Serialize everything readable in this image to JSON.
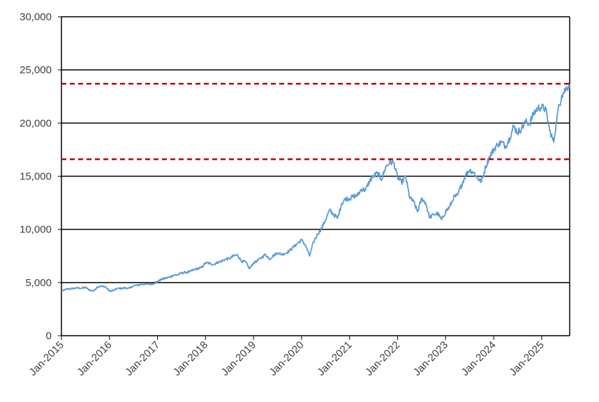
{
  "chart_data": {
    "type": "line",
    "title": "",
    "xlabel": "",
    "ylabel": "",
    "ylim": [
      0,
      30000
    ],
    "yticks": [
      0,
      5000,
      10000,
      15000,
      20000,
      25000,
      30000
    ],
    "ytick_labels": [
      "0",
      "5,000",
      "10,000",
      "15,000",
      "20,000",
      "25,000",
      "30,000"
    ],
    "xlim": [
      "2015-01",
      "2025-08"
    ],
    "xtick_labels": [
      "Jan-2015",
      "Jan-2016",
      "Jan-2017",
      "Jan-2018",
      "Jan-2019",
      "Jan-2020",
      "Jan-2021",
      "Jan-2022",
      "Jan-2023",
      "Jan-2024",
      "Jan-2025"
    ],
    "grid": "horizontal",
    "legend": "none",
    "series": [
      {
        "color": "#5b9bd5",
        "x": [
          "2015-01",
          "2015-02",
          "2015-03",
          "2015-04",
          "2015-05",
          "2015-06",
          "2015-07",
          "2015-08",
          "2015-09",
          "2015-10",
          "2015-11",
          "2015-12",
          "2016-01",
          "2016-02",
          "2016-03",
          "2016-04",
          "2016-05",
          "2016-06",
          "2016-07",
          "2016-08",
          "2016-09",
          "2016-10",
          "2016-11",
          "2016-12",
          "2017-01",
          "2017-02",
          "2017-03",
          "2017-04",
          "2017-05",
          "2017-06",
          "2017-07",
          "2017-08",
          "2017-09",
          "2017-10",
          "2017-11",
          "2017-12",
          "2018-01",
          "2018-02",
          "2018-03",
          "2018-04",
          "2018-05",
          "2018-06",
          "2018-07",
          "2018-08",
          "2018-09",
          "2018-10",
          "2018-11",
          "2018-12",
          "2019-01",
          "2019-02",
          "2019-03",
          "2019-04",
          "2019-05",
          "2019-06",
          "2019-07",
          "2019-08",
          "2019-09",
          "2019-10",
          "2019-11",
          "2019-12",
          "2020-01",
          "2020-02",
          "2020-03",
          "2020-04",
          "2020-05",
          "2020-06",
          "2020-07",
          "2020-08",
          "2020-09",
          "2020-10",
          "2020-11",
          "2020-12",
          "2021-01",
          "2021-02",
          "2021-03",
          "2021-04",
          "2021-05",
          "2021-06",
          "2021-07",
          "2021-08",
          "2021-09",
          "2021-10",
          "2021-11",
          "2021-12",
          "2022-01",
          "2022-02",
          "2022-03",
          "2022-04",
          "2022-05",
          "2022-06",
          "2022-07",
          "2022-08",
          "2022-09",
          "2022-10",
          "2022-11",
          "2022-12",
          "2023-01",
          "2023-02",
          "2023-03",
          "2023-04",
          "2023-05",
          "2023-06",
          "2023-07",
          "2023-08",
          "2023-09",
          "2023-10",
          "2023-11",
          "2023-12",
          "2024-01",
          "2024-02",
          "2024-03",
          "2024-04",
          "2024-05",
          "2024-06",
          "2024-07",
          "2024-08",
          "2024-09",
          "2024-10",
          "2024-11",
          "2024-12",
          "2025-01",
          "2025-02",
          "2025-03",
          "2025-04",
          "2025-05",
          "2025-06",
          "2025-07",
          "2025-08"
        ],
        "values": [
          4150,
          4350,
          4400,
          4450,
          4500,
          4450,
          4550,
          4300,
          4200,
          4600,
          4650,
          4600,
          4200,
          4250,
          4450,
          4450,
          4500,
          4450,
          4700,
          4750,
          4850,
          4850,
          4850,
          4900,
          5100,
          5300,
          5400,
          5500,
          5700,
          5700,
          5900,
          5950,
          6000,
          6200,
          6300,
          6400,
          6850,
          6800,
          6700,
          6900,
          7000,
          7200,
          7250,
          7500,
          7600,
          7000,
          6950,
          6300,
          6850,
          7050,
          7350,
          7650,
          7200,
          7550,
          7800,
          7650,
          7750,
          8000,
          8350,
          8700,
          9000,
          8500,
          7500,
          8800,
          9550,
          10100,
          10900,
          11800,
          11400,
          11050,
          12400,
          12900,
          12900,
          13100,
          13200,
          13800,
          13700,
          14550,
          15000,
          15300,
          14700,
          15850,
          16300,
          16300,
          14900,
          14400,
          15000,
          13000,
          12600,
          11650,
          12900,
          12500,
          11100,
          11400,
          11500,
          10900,
          11700,
          12100,
          13000,
          13200,
          14200,
          15100,
          15600,
          15350,
          14800,
          14500,
          15900,
          16850,
          17500,
          18000,
          18200,
          17800,
          18600,
          19700,
          19100,
          19500,
          20100,
          20000,
          20900,
          21400,
          21500,
          21300,
          19300,
          18200,
          21000,
          22600,
          23200,
          23650
        ]
      }
    ],
    "reference_lines": [
      {
        "value": 23700,
        "color": "#c00000",
        "style": "dashed"
      },
      {
        "value": 16600,
        "color": "#c00000",
        "style": "dashed"
      }
    ]
  }
}
